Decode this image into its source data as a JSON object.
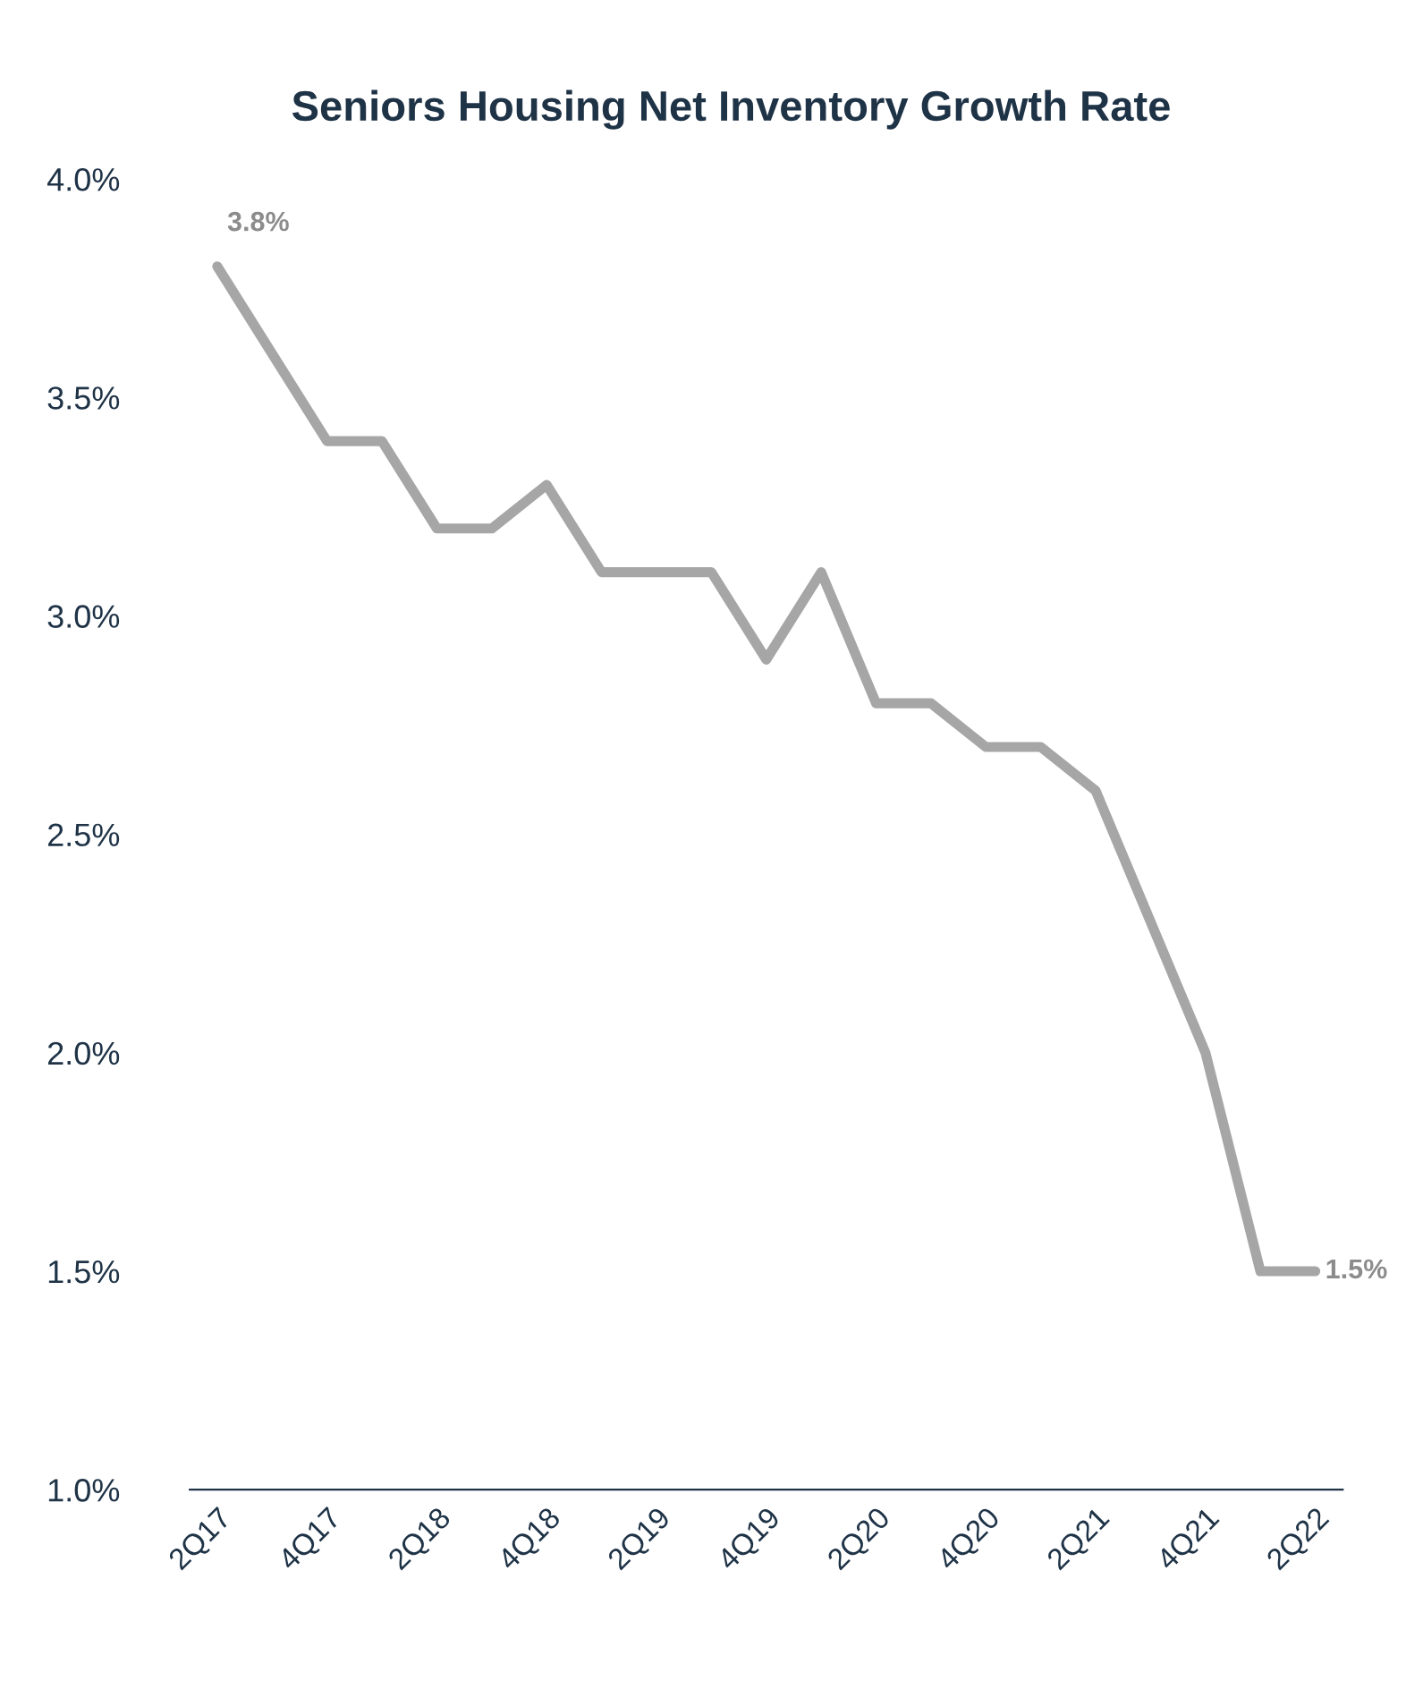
{
  "chart_data": {
    "type": "line",
    "title": "Seniors Housing Net Inventory Growth Rate",
    "categories": [
      "2Q17",
      null,
      "4Q17",
      null,
      "2Q18",
      null,
      "4Q18",
      null,
      "2Q19",
      null,
      "4Q19",
      null,
      "2Q20",
      null,
      "4Q20",
      null,
      "2Q21",
      null,
      "4Q21",
      null,
      "2Q22"
    ],
    "series": [
      {
        "color": "#a6a6a6",
        "values": [
          3.8,
          3.6,
          3.4,
          3.4,
          3.2,
          3.2,
          3.3,
          3.1,
          3.1,
          3.1,
          2.9,
          3.1,
          2.8,
          2.8,
          2.7,
          2.7,
          2.6,
          2.3,
          2.0,
          1.5,
          1.5
        ],
        "value_labels": [
          "3.8%",
          null,
          null,
          null,
          null,
          null,
          null,
          null,
          null,
          null,
          null,
          null,
          null,
          null,
          null,
          null,
          null,
          null,
          null,
          null,
          "1.5%"
        ]
      }
    ],
    "ylim": [
      1.0,
      4.0
    ],
    "yticks": [
      {
        "value": 1.0,
        "label": "1.0%"
      },
      {
        "value": 1.5,
        "label": "1.5%"
      },
      {
        "value": 2.0,
        "label": "2.0%"
      },
      {
        "value": 2.5,
        "label": "2.5%"
      },
      {
        "value": 3.0,
        "label": "3.0%"
      },
      {
        "value": 3.5,
        "label": "3.5%"
      },
      {
        "value": 4.0,
        "label": "4.0%"
      }
    ],
    "grid": false,
    "legend": false,
    "marker": "none",
    "line_style": "solid"
  }
}
